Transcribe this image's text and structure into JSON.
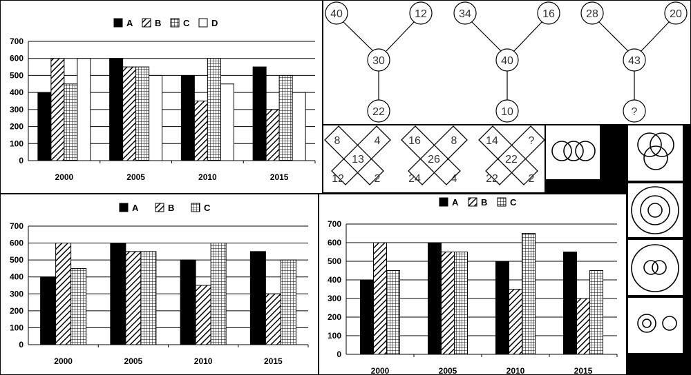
{
  "chart_data": [
    {
      "type": "bar",
      "categories": [
        "2000",
        "2005",
        "2010",
        "2015"
      ],
      "series": [
        {
          "name": "A",
          "values": [
            400,
            600,
            500,
            550
          ]
        },
        {
          "name": "B",
          "values": [
            600,
            550,
            350,
            300
          ]
        },
        {
          "name": "C",
          "values": [
            450,
            550,
            600,
            500
          ]
        },
        {
          "name": "D",
          "values": [
            600,
            500,
            450,
            400
          ]
        }
      ],
      "yticks": [
        "0",
        "100",
        "200",
        "300",
        "400",
        "500",
        "600",
        "700"
      ],
      "ylim": [
        0,
        700
      ],
      "grid": true,
      "legend": "top-center"
    },
    {
      "type": "bar",
      "categories": [
        "2000",
        "2005",
        "2010",
        "2015"
      ],
      "series": [
        {
          "name": "A",
          "values": [
            400,
            600,
            500,
            550
          ]
        },
        {
          "name": "B",
          "values": [
            600,
            550,
            350,
            300
          ]
        },
        {
          "name": "C",
          "values": [
            450,
            550,
            600,
            500
          ]
        }
      ],
      "yticks": [
        "0",
        "100",
        "200",
        "300",
        "400",
        "500",
        "600",
        "700"
      ],
      "ylim": [
        0,
        700
      ],
      "grid": true,
      "legend": "top-center"
    },
    {
      "type": "bar",
      "categories": [
        "2000",
        "2005",
        "2010",
        "2015"
      ],
      "series": [
        {
          "name": "A",
          "values": [
            400,
            600,
            500,
            550
          ]
        },
        {
          "name": "B",
          "values": [
            600,
            550,
            350,
            300
          ]
        },
        {
          "name": "C",
          "values": [
            450,
            550,
            650,
            450
          ]
        }
      ],
      "yticks": [
        "0",
        "100",
        "200",
        "300",
        "400",
        "500",
        "600",
        "700"
      ],
      "ylim": [
        0,
        700
      ],
      "grid": true,
      "legend": "top-center"
    }
  ],
  "trees": [
    {
      "left": "40",
      "right": "12",
      "center": "30",
      "bottom": "22"
    },
    {
      "left": "34",
      "right": "16",
      "center": "40",
      "bottom": "10"
    },
    {
      "left": "28",
      "right": "20",
      "center": "43",
      "bottom": "?"
    }
  ],
  "crosses": [
    {
      "tl": "8",
      "tr": "4",
      "center": "13",
      "bl": "12",
      "br": "2"
    },
    {
      "tl": "16",
      "tr": "8",
      "center": "26",
      "bl": "24",
      "br": "4"
    },
    {
      "tl": "14",
      "tr": "?",
      "center": "22",
      "bl": "22",
      "br": "2"
    }
  ],
  "colors": {
    "background": "#000000",
    "panel": "#ffffff",
    "ink": "#000000"
  }
}
